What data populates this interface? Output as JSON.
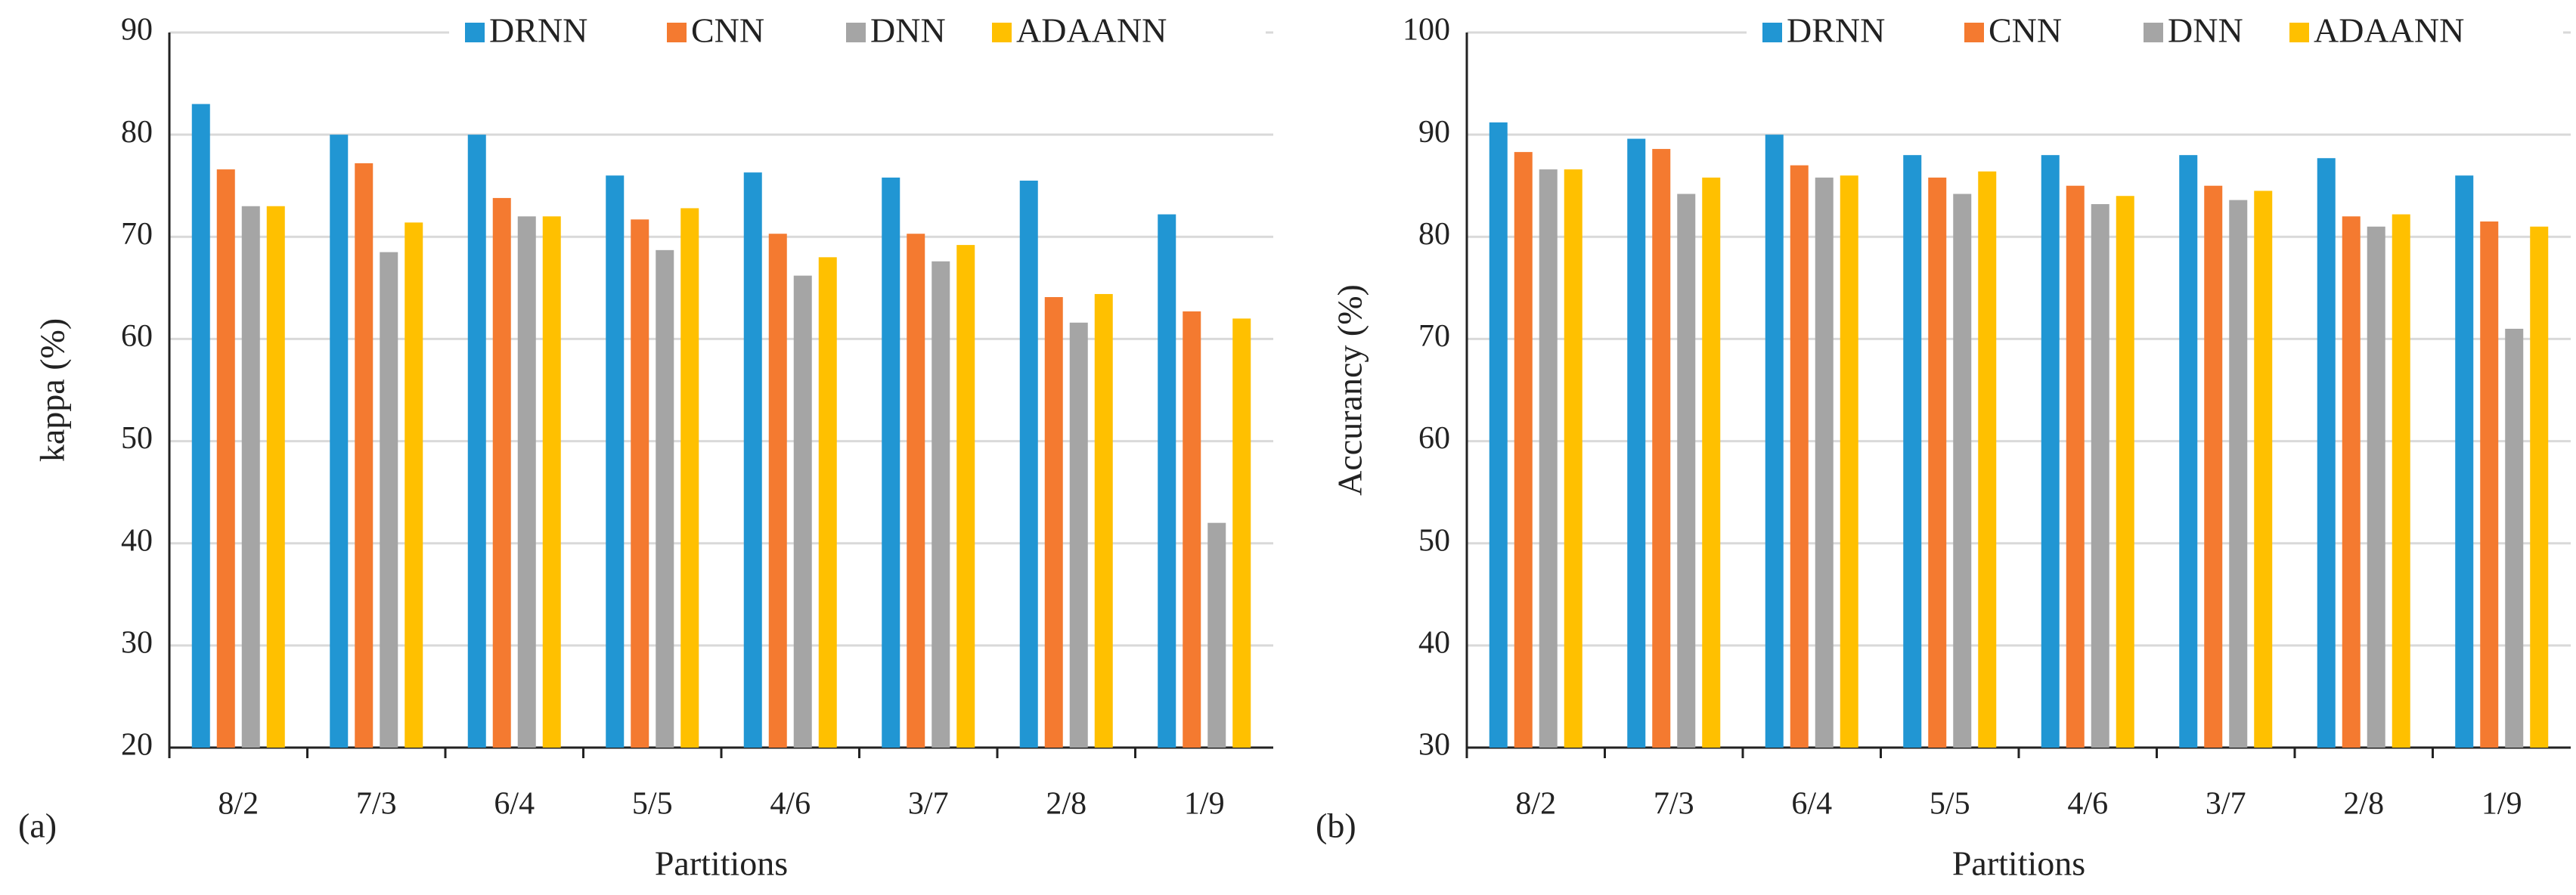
{
  "chart_data": [
    {
      "type": "bar",
      "panel_label": "(a)",
      "ylabel": "kappa (%)",
      "xlabel": "Partitions",
      "categories": [
        "8/2",
        "7/3",
        "6/4",
        "5/5",
        "4/6",
        "3/7",
        "2/8",
        "1/9"
      ],
      "series": [
        {
          "name": "DRNN",
          "color": "#2196d3",
          "values": [
            83,
            80,
            80,
            76,
            76.3,
            75.8,
            75.5,
            72.2
          ]
        },
        {
          "name": "CNN",
          "color": "#f47a30",
          "values": [
            76.6,
            77.2,
            73.8,
            71.7,
            70.3,
            70.3,
            64.1,
            62.7
          ]
        },
        {
          "name": "DNN",
          "color": "#a5a5a5",
          "values": [
            73,
            68.5,
            72,
            68.7,
            66.2,
            67.6,
            61.6,
            42
          ]
        },
        {
          "name": "ADAANN",
          "color": "#ffc000",
          "values": [
            73,
            71.4,
            72,
            72.8,
            68,
            69.2,
            64.4,
            62
          ]
        }
      ],
      "ylim": [
        20,
        90
      ],
      "yticks": [
        20,
        30,
        40,
        50,
        60,
        70,
        80,
        90
      ],
      "grid": true,
      "legend": "top-right"
    },
    {
      "type": "bar",
      "panel_label": "(b)",
      "ylabel": "Accurancy (%)",
      "xlabel": "Partitions",
      "categories": [
        "8/2",
        "7/3",
        "6/4",
        "5/5",
        "4/6",
        "3/7",
        "2/8",
        "1/9"
      ],
      "series": [
        {
          "name": "DRNN",
          "color": "#2196d3",
          "values": [
            91.2,
            89.6,
            90,
            88,
            88,
            88,
            87.7,
            86
          ]
        },
        {
          "name": "CNN",
          "color": "#f47a30",
          "values": [
            88.3,
            88.6,
            87,
            85.8,
            85,
            85,
            82,
            81.5
          ]
        },
        {
          "name": "DNN",
          "color": "#a5a5a5",
          "values": [
            86.6,
            84.2,
            85.8,
            84.2,
            83.2,
            83.6,
            81,
            71
          ]
        },
        {
          "name": "ADAANN",
          "color": "#ffc000",
          "values": [
            86.6,
            85.8,
            86,
            86.4,
            84,
            84.5,
            82.2,
            81
          ]
        }
      ],
      "ylim": [
        30,
        100
      ],
      "yticks": [
        30,
        40,
        50,
        60,
        70,
        80,
        90,
        100
      ],
      "grid": true,
      "legend": "top-right"
    }
  ]
}
